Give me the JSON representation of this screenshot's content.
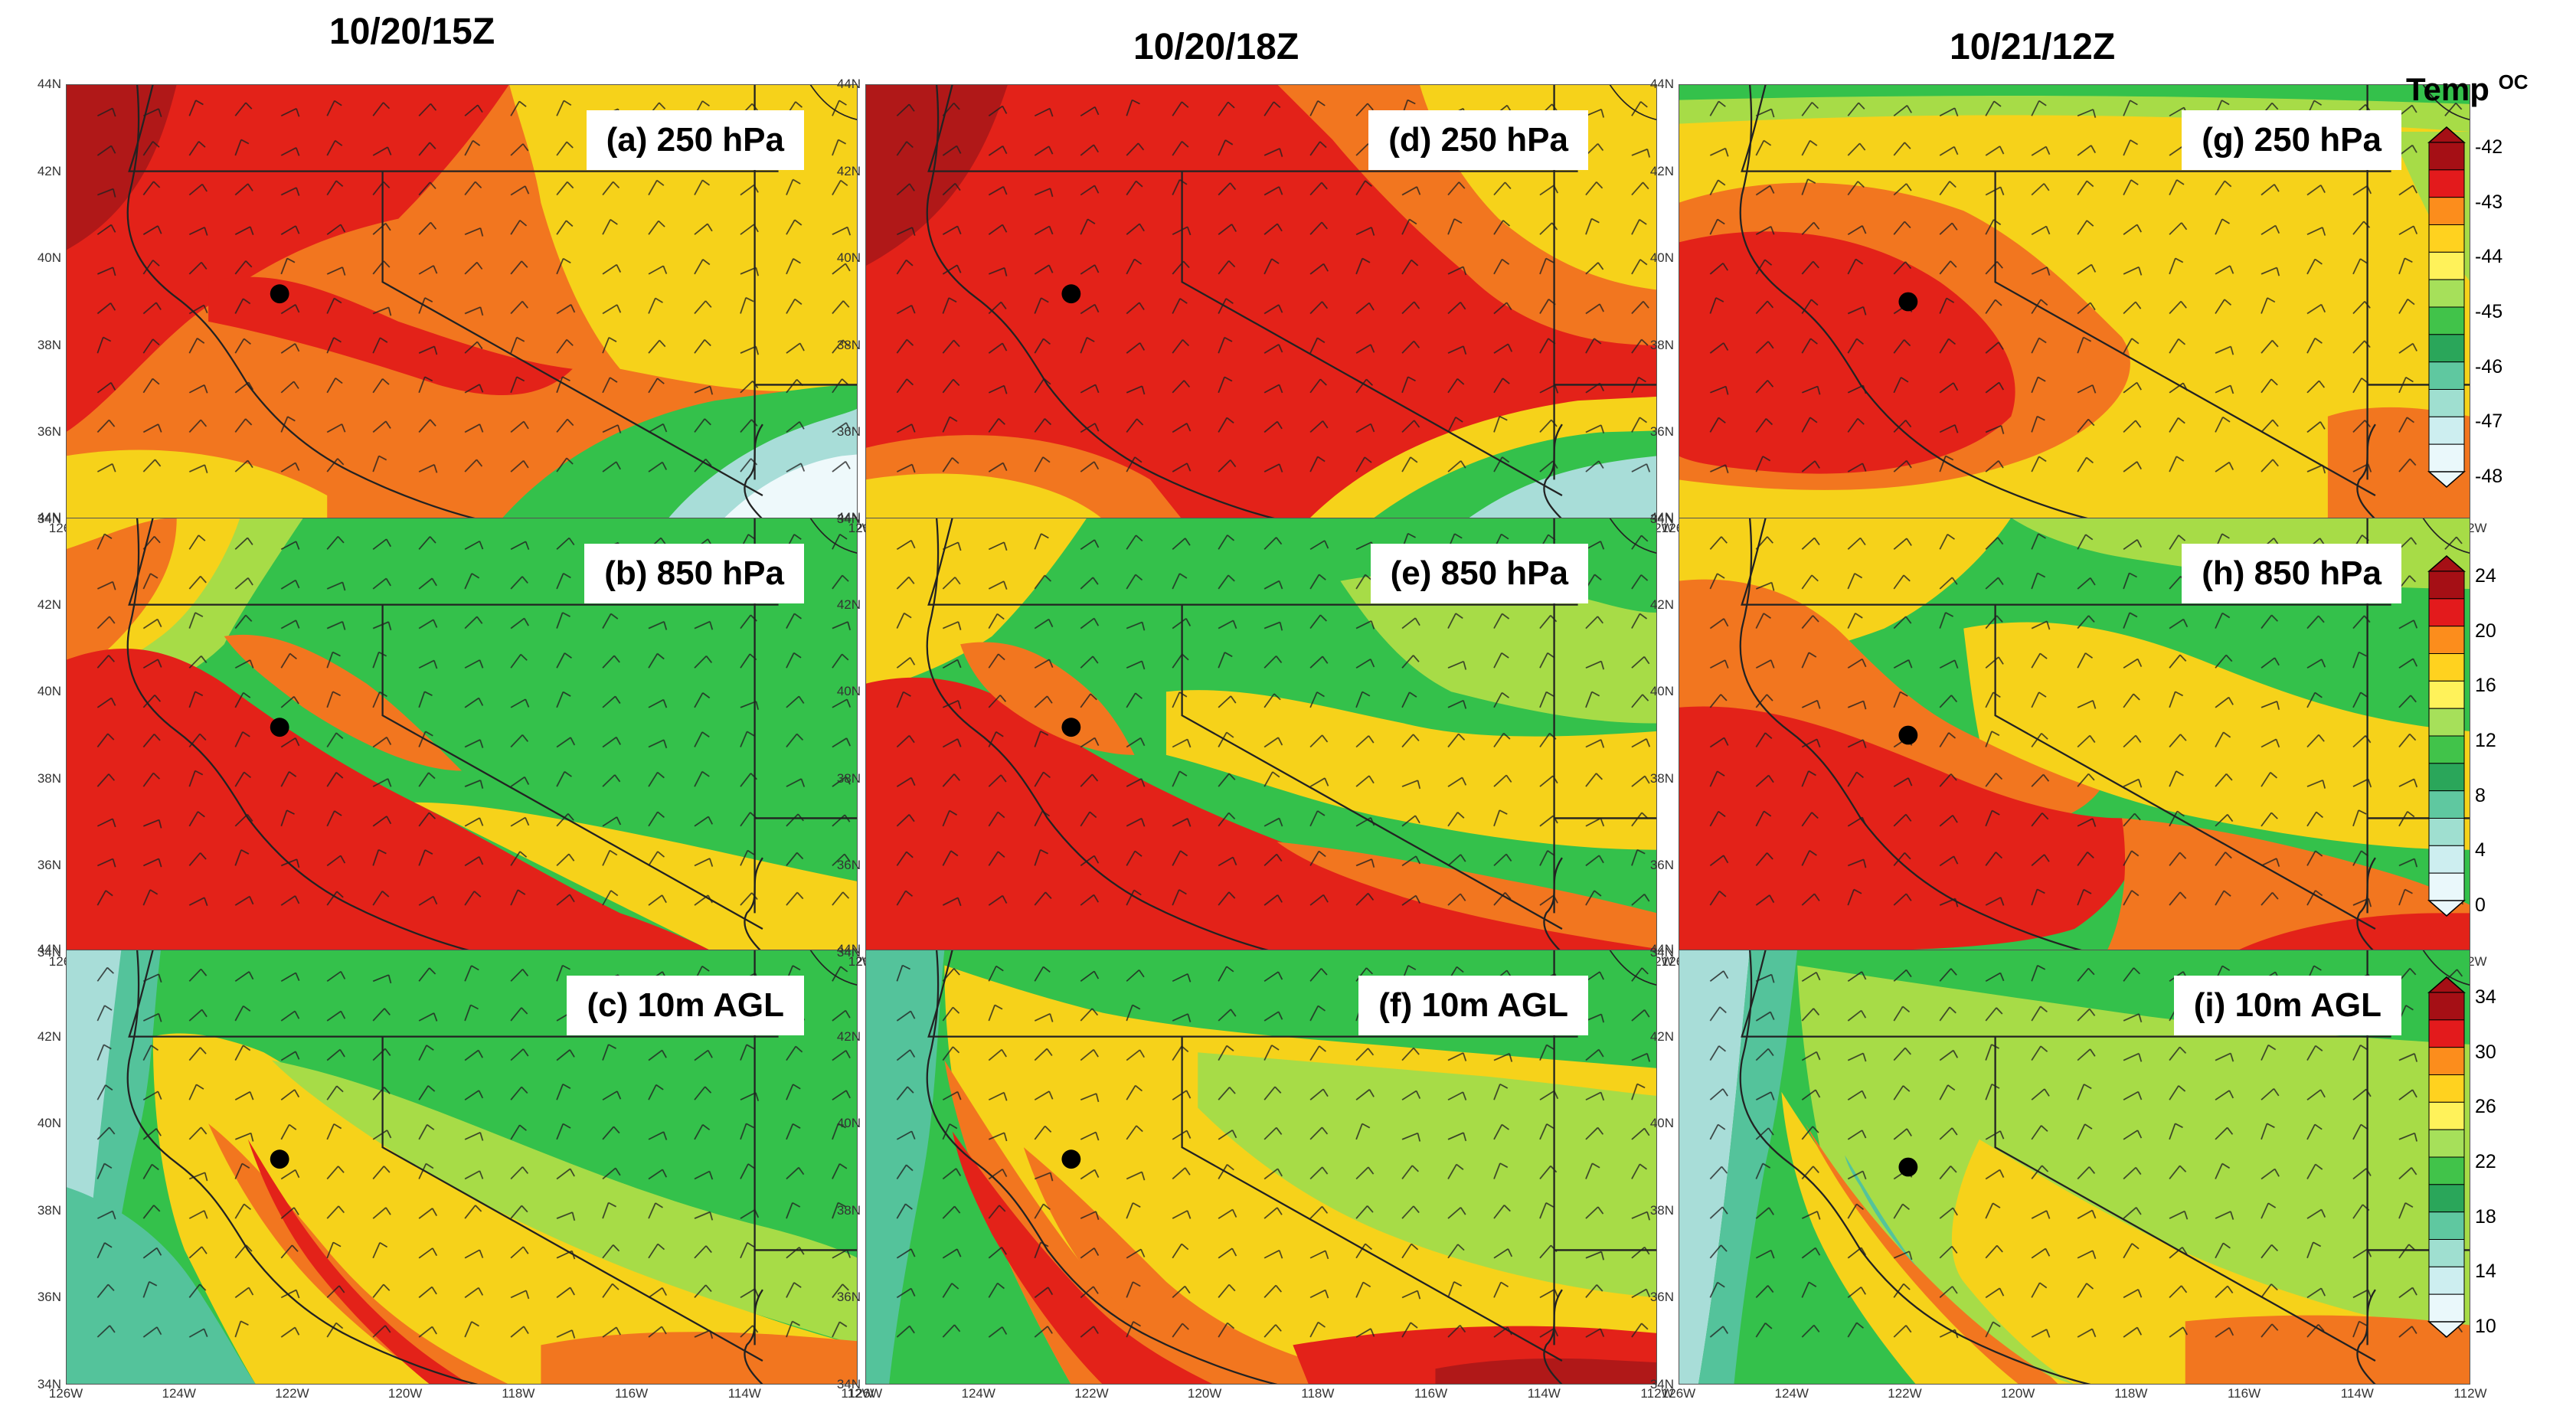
{
  "columns": [
    "10/20/15Z",
    "10/20/18Z",
    "10/21/12Z"
  ],
  "colorbar_title": "Temp",
  "colorbar_unit": "OC",
  "lat_ticks": [
    "44N",
    "42N",
    "40N",
    "38N",
    "36N",
    "34N"
  ],
  "lon_ticks": [
    "126W",
    "124W",
    "122W",
    "120W",
    "118W",
    "116W",
    "114W",
    "112W"
  ],
  "panels": [
    {
      "id": "a",
      "label": "(a) 250 hPa",
      "level": "250 hPa",
      "row": 0,
      "col": 0
    },
    {
      "id": "b",
      "label": "(b) 850 hPa",
      "level": "850 hPa",
      "row": 1,
      "col": 0
    },
    {
      "id": "c",
      "label": "(c) 10m AGL",
      "level": "10m AGL",
      "row": 2,
      "col": 0
    },
    {
      "id": "d",
      "label": "(d) 250 hPa",
      "level": "250 hPa",
      "row": 0,
      "col": 1
    },
    {
      "id": "e",
      "label": "(e) 850 hPa",
      "level": "850 hPa",
      "row": 1,
      "col": 1
    },
    {
      "id": "f",
      "label": "(f) 10m AGL",
      "level": "10m AGL",
      "row": 2,
      "col": 1
    },
    {
      "id": "g",
      "label": "(g) 250 hPa",
      "level": "250 hPa",
      "row": 0,
      "col": 2
    },
    {
      "id": "h",
      "label": "(h) 850 hPa",
      "level": "850 hPa",
      "row": 1,
      "col": 2
    },
    {
      "id": "i",
      "label": "(i) 10m AGL",
      "level": "10m AGL",
      "row": 2,
      "col": 2
    }
  ],
  "colorbars": [
    {
      "level": "250 hPa",
      "labels": [
        "-42",
        "-43",
        "-44",
        "-45",
        "-46",
        "-47",
        "-48"
      ],
      "colors": [
        "#a50f15",
        "#e31a1c",
        "#fc8d1c",
        "#ffd21f",
        "#fff25a",
        "#a6e05a",
        "#41c34a",
        "#2aa65a",
        "#5fc8a0",
        "#9fdfd0",
        "#cdeef0",
        "#eaf8fb"
      ]
    },
    {
      "level": "850 hPa",
      "labels": [
        "24",
        "20",
        "16",
        "12",
        "8",
        "4",
        "0"
      ],
      "colors": [
        "#a50f15",
        "#e31a1c",
        "#fc8d1c",
        "#ffd21f",
        "#fff25a",
        "#a6e05a",
        "#41c34a",
        "#2aa65a",
        "#5fc8a0",
        "#9fdfd0",
        "#cdeef0",
        "#eaf8fb"
      ]
    },
    {
      "level": "10m AGL",
      "labels": [
        "34",
        "30",
        "26",
        "22",
        "18",
        "14",
        "10"
      ],
      "colors": [
        "#a50f15",
        "#e31a1c",
        "#fc8d1c",
        "#ffd21f",
        "#fff25a",
        "#a6e05a",
        "#41c34a",
        "#2aa65a",
        "#5fc8a0",
        "#9fdfd0",
        "#cdeef0",
        "#eaf8fb"
      ]
    }
  ],
  "field_colors": {
    "darkred": "#b01818",
    "red": "#e32219",
    "orange": "#f2761f",
    "yellow": "#f6d21a",
    "lightgreen": "#a7dc47",
    "green": "#34c14b",
    "teal": "#54c39b",
    "paleteal": "#a8ddd8",
    "white": "#eef9fb"
  },
  "site_marker": "black-dot"
}
